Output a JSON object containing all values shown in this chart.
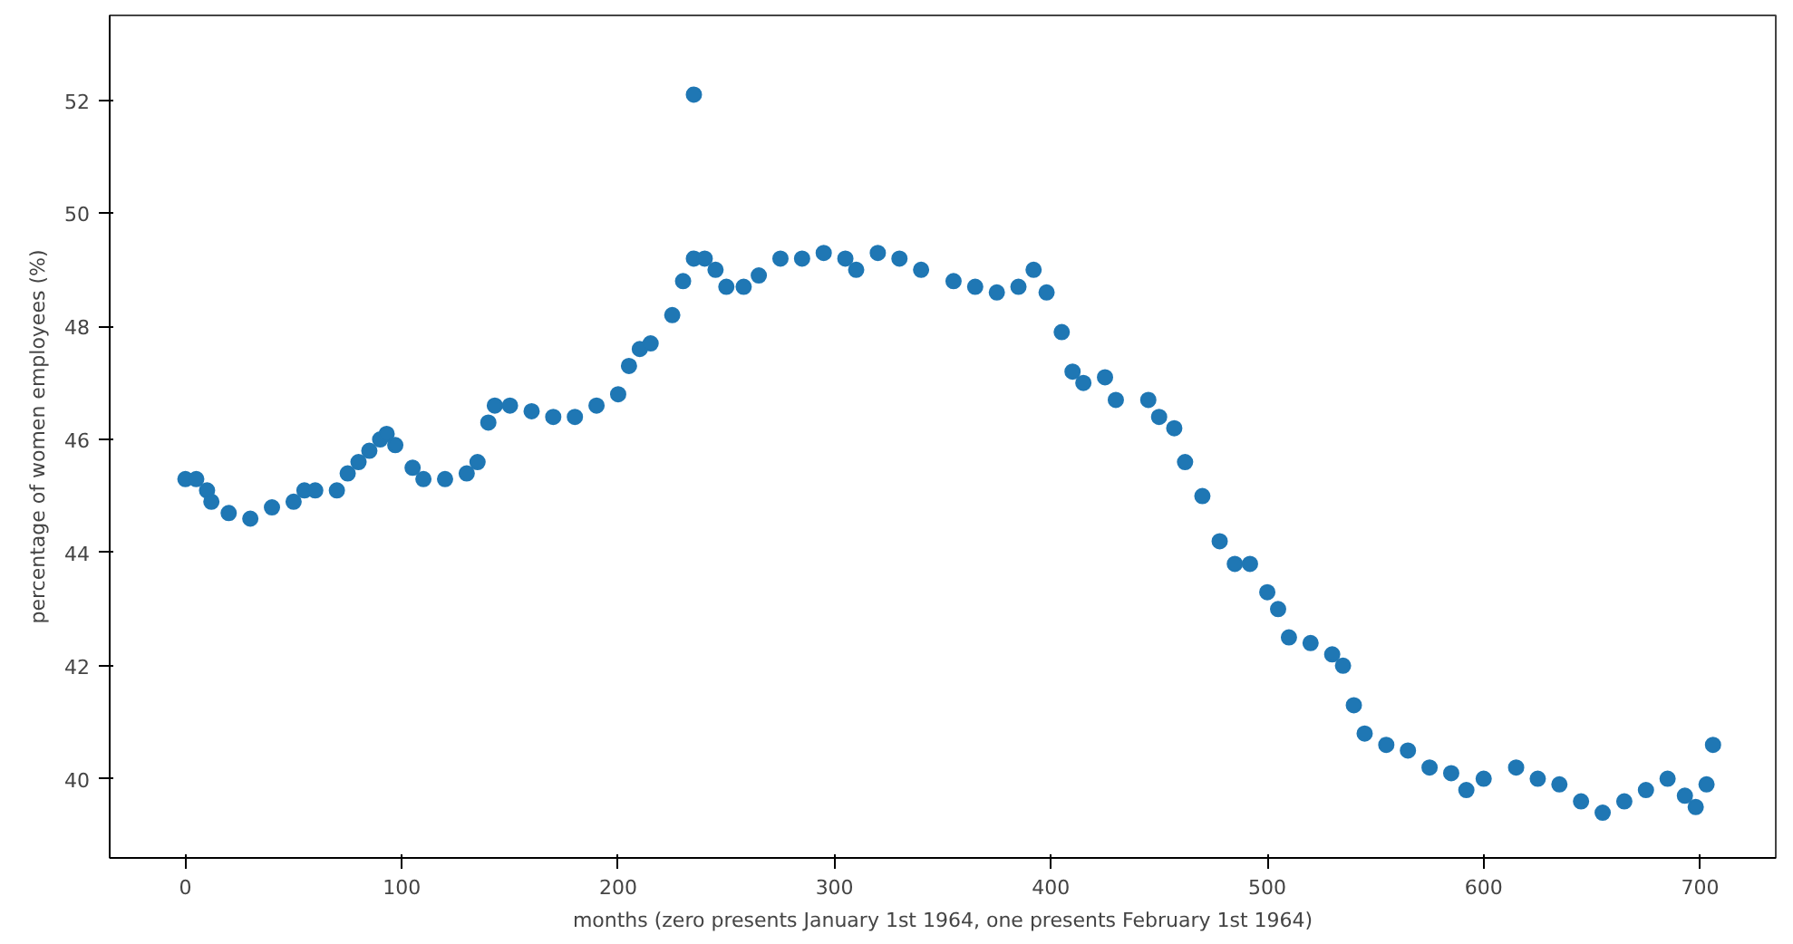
{
  "chart_data": {
    "type": "scatter",
    "xlabel": "months (zero presents January 1st 1964, one presents February 1st 1964)",
    "ylabel": "percentage of women employees (%)",
    "xlim": [
      -35,
      735
    ],
    "ylim": [
      38.6,
      53.5
    ],
    "xticks": [
      0,
      100,
      200,
      300,
      400,
      500,
      600,
      700
    ],
    "yticks": [
      40,
      42,
      44,
      46,
      48,
      50,
      52
    ],
    "grid": false,
    "marker": "circle",
    "series": [
      {
        "color": "#1f77b4",
        "x": [
          0,
          5,
          10,
          12,
          20,
          30,
          40,
          50,
          55,
          60,
          70,
          75,
          80,
          85,
          90,
          93,
          97,
          105,
          110,
          120,
          130,
          135,
          140,
          143,
          150,
          160,
          170,
          180,
          190,
          200,
          205,
          210,
          215,
          225,
          230,
          235,
          240,
          245,
          250,
          258,
          265,
          275,
          285,
          295,
          305,
          310,
          320,
          330,
          340,
          355,
          365,
          375,
          385,
          392,
          398,
          405,
          410,
          415,
          425,
          430,
          445,
          450,
          457,
          462,
          470,
          478,
          485,
          492,
          500,
          505,
          510,
          520,
          530,
          535,
          540,
          545,
          555,
          565,
          575,
          585,
          592,
          600,
          615,
          625,
          635,
          645,
          655,
          665,
          675,
          685,
          693,
          698,
          703,
          706,
          235
        ],
        "values": [
          45.3,
          45.3,
          45.1,
          44.9,
          44.7,
          44.6,
          44.8,
          44.9,
          45.1,
          45.1,
          45.1,
          45.4,
          45.6,
          45.8,
          46.0,
          46.1,
          45.9,
          45.5,
          45.3,
          45.3,
          45.4,
          45.6,
          46.3,
          46.6,
          46.6,
          46.5,
          46.4,
          46.4,
          46.6,
          46.8,
          47.3,
          47.6,
          47.7,
          48.2,
          48.8,
          49.2,
          49.2,
          49.0,
          48.7,
          48.7,
          48.9,
          49.2,
          49.2,
          49.3,
          49.2,
          49.0,
          49.3,
          49.2,
          49.0,
          48.8,
          48.7,
          48.6,
          48.7,
          49.0,
          48.6,
          47.9,
          47.2,
          47.0,
          47.1,
          46.7,
          46.7,
          46.4,
          46.2,
          45.6,
          45.0,
          44.2,
          43.8,
          43.8,
          43.3,
          43.0,
          42.5,
          42.4,
          42.2,
          42.0,
          41.3,
          40.8,
          40.6,
          40.5,
          40.2,
          40.1,
          39.8,
          40.0,
          40.2,
          40.0,
          39.9,
          39.6,
          39.4,
          39.6,
          39.8,
          40.0,
          39.7,
          39.5,
          39.9,
          40.6,
          52.1
        ]
      }
    ]
  }
}
